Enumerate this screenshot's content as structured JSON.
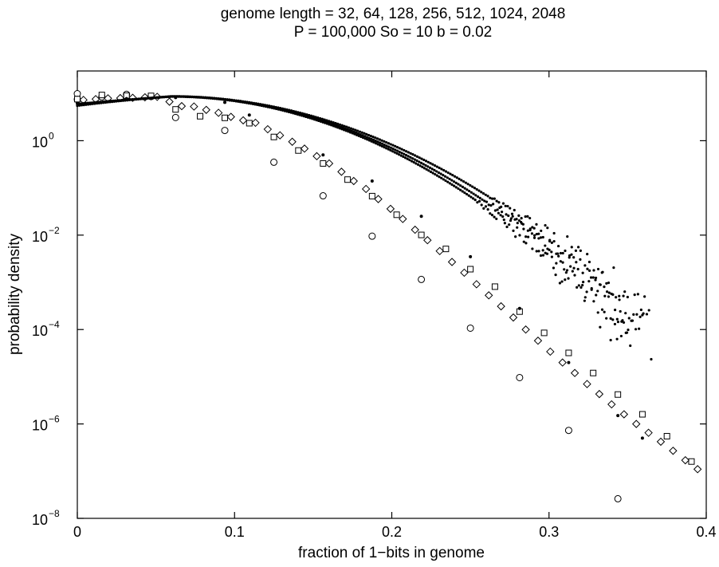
{
  "chart_data": {
    "type": "scatter",
    "title_line1": "genome length = 32, 64, 128, 256, 512, 1024, 2048",
    "title_line2": "P = 100,000  So = 10  b = 0.02",
    "xlabel": "fraction of 1−bits in genome",
    "ylabel": "probability density",
    "xlim": [
      0,
      0.4
    ],
    "ylim": [
      1e-08,
      30
    ],
    "yscale": "log",
    "grid": false,
    "x_ticks": [
      {
        "value": 0,
        "label": "0"
      },
      {
        "value": 0.1,
        "label": "0.1"
      },
      {
        "value": 0.2,
        "label": "0.2"
      },
      {
        "value": 0.3,
        "label": "0.3"
      },
      {
        "value": 0.4,
        "label": "0.4"
      }
    ],
    "y_ticks": [
      {
        "value": 1,
        "base": "10",
        "exp": "0"
      },
      {
        "value": 0.01,
        "base": "10",
        "exp": "−2"
      },
      {
        "value": 0.0001,
        "base": "10",
        "exp": "−4"
      },
      {
        "value": 1e-06,
        "base": "10",
        "exp": "−6"
      },
      {
        "value": 1e-08,
        "base": "10",
        "exp": "−8"
      }
    ],
    "series": [
      {
        "marker": "circle",
        "points": [
          [
            0.0,
            9.9
          ],
          [
            0.0,
            7.5
          ],
          [
            0.0156,
            8.5
          ],
          [
            0.0313,
            9.6
          ],
          [
            0.0469,
            8.6
          ],
          [
            0.0625,
            3.1
          ],
          [
            0.0938,
            1.65
          ],
          [
            0.125,
            0.35
          ],
          [
            0.1563,
            0.068
          ],
          [
            0.1875,
            0.0095
          ],
          [
            0.2188,
            0.00115
          ],
          [
            0.25,
            0.000107
          ],
          [
            0.2813,
            9.6e-06
          ],
          [
            0.3125,
            7.3e-07
          ],
          [
            0.3438,
            2.6e-08
          ]
        ]
      },
      {
        "marker": "square",
        "points": [
          [
            0.0,
            7.6
          ],
          [
            0.0156,
            9.3
          ],
          [
            0.0313,
            9.0
          ],
          [
            0.0469,
            8.9
          ],
          [
            0.0625,
            4.6
          ],
          [
            0.0781,
            3.3
          ],
          [
            0.0938,
            3.05
          ],
          [
            0.1094,
            2.35
          ],
          [
            0.125,
            1.2
          ],
          [
            0.1406,
            0.62
          ],
          [
            0.1563,
            0.33
          ],
          [
            0.1719,
            0.15
          ],
          [
            0.1875,
            0.067
          ],
          [
            0.2031,
            0.027
          ],
          [
            0.2188,
            0.0101
          ],
          [
            0.2344,
            0.0051
          ],
          [
            0.25,
            0.0019
          ],
          [
            0.2656,
            0.00081
          ],
          [
            0.2813,
            0.00024
          ],
          [
            0.2969,
            8.5e-05
          ],
          [
            0.3125,
            3.2e-05
          ],
          [
            0.3281,
            1.2e-05
          ],
          [
            0.3438,
            4.2e-06
          ],
          [
            0.3594,
            1.6e-06
          ],
          [
            0.375,
            5.5e-07
          ],
          [
            0.3906,
            1.6e-07
          ]
        ]
      },
      {
        "marker": "diamond",
        "points": [
          [
            0.0039,
            7.3
          ],
          [
            0.0117,
            7.6
          ],
          [
            0.0195,
            7.9
          ],
          [
            0.0273,
            8.0
          ],
          [
            0.0352,
            8.1
          ],
          [
            0.043,
            8.3
          ],
          [
            0.0508,
            8.5
          ],
          [
            0.0586,
            6.7
          ],
          [
            0.0664,
            5.4
          ],
          [
            0.0742,
            5.3
          ],
          [
            0.082,
            4.5
          ],
          [
            0.0898,
            3.9
          ],
          [
            0.0977,
            3.2
          ],
          [
            0.1055,
            2.7
          ],
          [
            0.1133,
            2.4
          ],
          [
            0.1211,
            1.75
          ],
          [
            0.1289,
            1.3
          ],
          [
            0.1367,
            0.95
          ],
          [
            0.1445,
            0.68
          ],
          [
            0.1523,
            0.47
          ],
          [
            0.1602,
            0.33
          ],
          [
            0.168,
            0.22
          ],
          [
            0.1758,
            0.14
          ],
          [
            0.1836,
            0.095
          ],
          [
            0.1914,
            0.058
          ],
          [
            0.1992,
            0.036
          ],
          [
            0.207,
            0.022
          ],
          [
            0.2148,
            0.013
          ],
          [
            0.2227,
            0.0078
          ],
          [
            0.2305,
            0.0046
          ],
          [
            0.2383,
            0.0027
          ],
          [
            0.2461,
            0.0016
          ],
          [
            0.2539,
            0.00091
          ],
          [
            0.2617,
            0.00053
          ],
          [
            0.2695,
            0.00031
          ],
          [
            0.2773,
            0.00018
          ],
          [
            0.2852,
            0.0001
          ],
          [
            0.293,
            5.8e-05
          ],
          [
            0.3008,
            3.4e-05
          ],
          [
            0.3086,
            2e-05
          ],
          [
            0.3164,
            1.2e-05
          ],
          [
            0.3242,
            7e-06
          ],
          [
            0.332,
            4.3e-06
          ],
          [
            0.3398,
            2.6e-06
          ],
          [
            0.3477,
            1.6e-06
          ],
          [
            0.3555,
            1e-06
          ],
          [
            0.3633,
            6.5e-07
          ],
          [
            0.3711,
            4.2e-07
          ],
          [
            0.3789,
            2.7e-07
          ],
          [
            0.3867,
            1.7e-07
          ],
          [
            0.3945,
            1.1e-07
          ]
        ]
      },
      {
        "marker": "dot",
        "points": [
          [
            0.0,
            6.2
          ],
          [
            0.0313,
            7.8
          ],
          [
            0.0625,
            8.2
          ],
          [
            0.0938,
            6.5
          ],
          [
            0.1094,
            3.5
          ],
          [
            0.1563,
            0.5
          ],
          [
            0.1875,
            0.14
          ],
          [
            0.2188,
            0.025
          ],
          [
            0.25,
            0.0035
          ],
          [
            0.2813,
            0.00028
          ],
          [
            0.3125,
            2e-05
          ],
          [
            0.3438,
            1.5e-06
          ],
          [
            0.3594,
            5e-07
          ]
        ]
      }
    ],
    "curves": [
      {
        "peak": 0.06,
        "peak_value": 8.7,
        "left_value": 5.8,
        "width": 0.1039,
        "cut": 0.26,
        "scatter_until": 0.365
      },
      {
        "peak": 0.06,
        "peak_value": 8.7,
        "left_value": 5.5,
        "width": 0.1004,
        "cut": 0.255,
        "scatter_until": 0.36
      },
      {
        "peak": 0.06,
        "peak_value": 8.6,
        "left_value": 6.0,
        "width": 0.0981,
        "cut": 0.25,
        "scatter_until": 0.35
      }
    ]
  }
}
